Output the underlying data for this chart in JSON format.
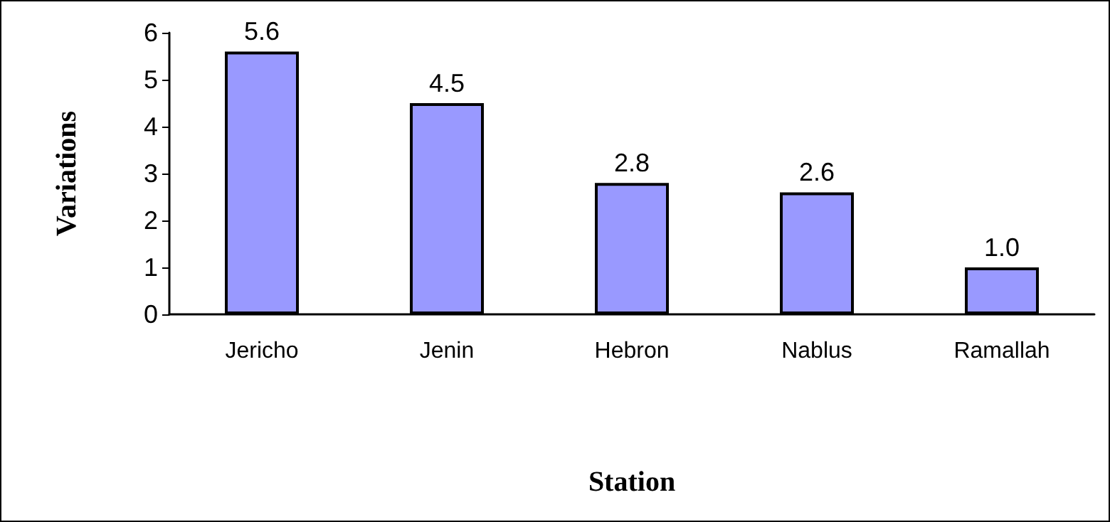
{
  "chart_data": {
    "type": "bar",
    "xlabel": "Station",
    "ylabel": "Variations",
    "categories": [
      "Jericho",
      "Jenin",
      "Hebron",
      "Nablus",
      "Ramallah"
    ],
    "values": [
      5.6,
      4.5,
      2.8,
      2.6,
      1.0
    ],
    "value_labels": [
      "5.6",
      "4.5",
      "2.8",
      "2.6",
      "1.0"
    ],
    "color": "#9999ff",
    "ylim": [
      0,
      6
    ],
    "yticks": [
      0,
      1,
      2,
      3,
      4,
      5,
      6
    ],
    "grid": false
  }
}
